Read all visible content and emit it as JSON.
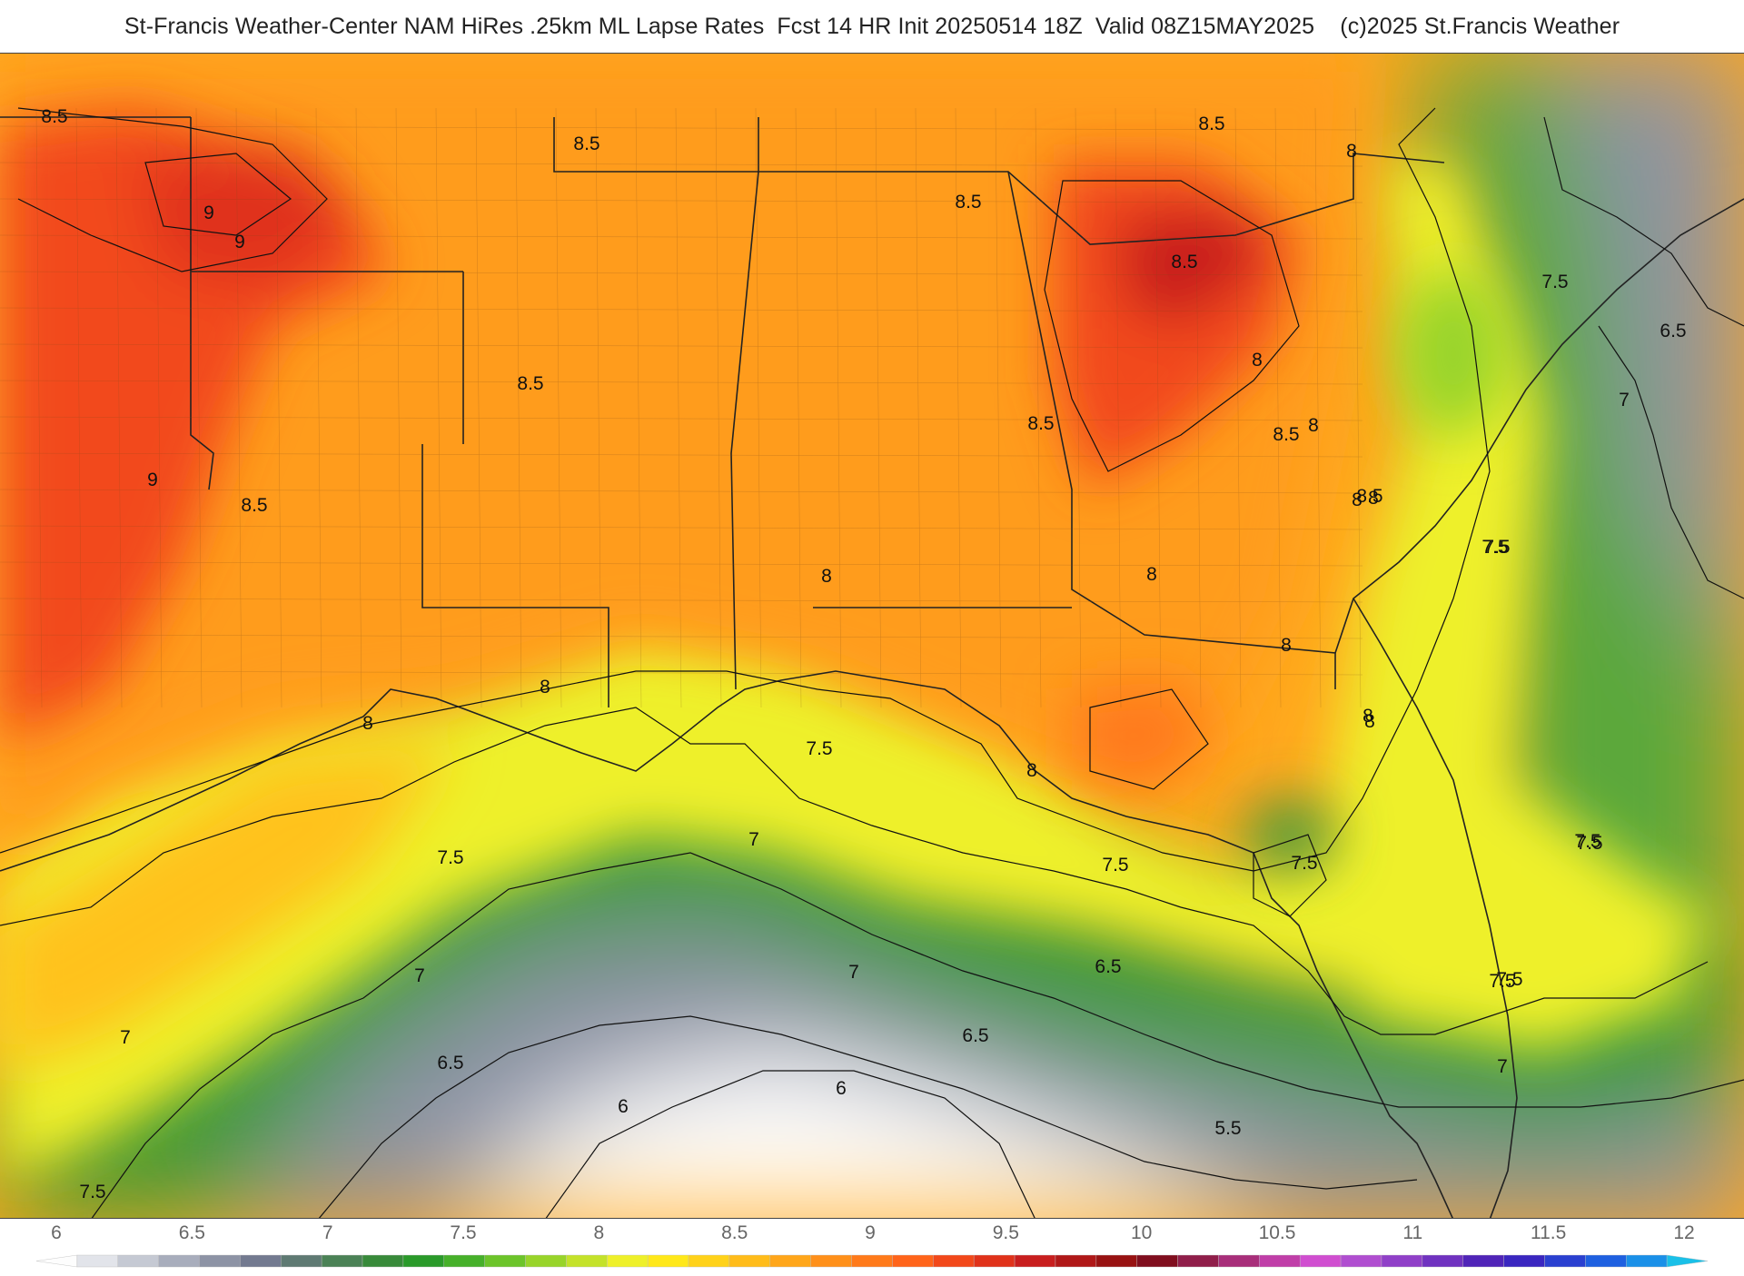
{
  "title": "St-Francis Weather-Center NAM HiRes .25km ML Lapse Rates  Fcst 14 HR Init 20250514 18Z  Valid 08Z15MAY2025    (c)2025 St.Francis Weather",
  "map": {
    "variable": "ML Lapse Rates",
    "contour_labels": [
      "8.5",
      "9",
      "9",
      "8.5",
      "8.5",
      "8.5",
      "8.5",
      "8.5",
      "8.5",
      "8",
      "8",
      "8",
      "8",
      "8",
      "8",
      "9",
      "8",
      "8",
      "8.5",
      "8",
      "8",
      "7.5",
      "7.5",
      "7.5",
      "7.5",
      "7.5",
      "7.5",
      "7",
      "7",
      "7",
      "6.5",
      "6.5",
      "6",
      "6",
      "5.5",
      "6.5",
      "7",
      "7.5",
      "7",
      "7.5",
      "7.5",
      "8",
      "8.5",
      "6.5",
      "7",
      "7.5",
      "7.5",
      "7.5",
      "8",
      "8.5",
      "8"
    ]
  },
  "colorbar": {
    "tick_labels": [
      "6",
      "6.5",
      "7",
      "7.5",
      "8",
      "8.5",
      "9",
      "9.5",
      "10",
      "10.5",
      "11",
      "11.5",
      "12"
    ],
    "colors": [
      "#fdfdfd",
      "#e2e4ea",
      "#c5c9d3",
      "#a8adbc",
      "#8d93a5",
      "#737a90",
      "#5f7a73",
      "#4b8256",
      "#388a3a",
      "#2a9a2a",
      "#46b02a",
      "#6cc42a",
      "#98d42a",
      "#c4e22a",
      "#eef02a",
      "#ffe81a",
      "#ffd21a",
      "#ffbc1a",
      "#ffa61a",
      "#ff901a",
      "#ff7a1a",
      "#ff641a",
      "#f2481a",
      "#e0321a",
      "#c81e1e",
      "#b01818",
      "#981212",
      "#800e1e",
      "#901e4a",
      "#a82e7a",
      "#c03ea8",
      "#d04ed0",
      "#b04ed0",
      "#9040c8",
      "#7032c0",
      "#5024b8",
      "#3a26c0",
      "#2a40d0",
      "#1e60e0",
      "#1a90e8",
      "#1ac0e8"
    ]
  }
}
